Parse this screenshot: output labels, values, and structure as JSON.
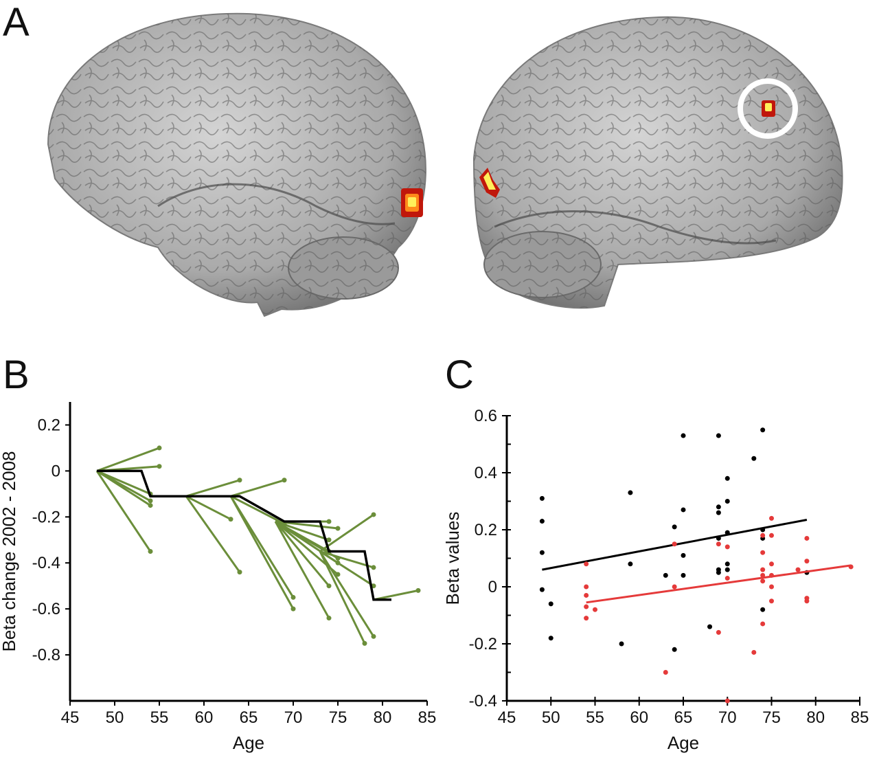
{
  "panels": {
    "a_label": "A",
    "b_label": "B",
    "c_label": "C"
  },
  "colors": {
    "brain": "#a9a9a9",
    "activation_outer": "#c0170b",
    "activation_inner": "#ffef5a",
    "green": "#6b8e3a",
    "black": "#000000",
    "red": "#e53a3a"
  },
  "chart_data": [
    {
      "type": "line",
      "xlabel": "Age",
      "ylabel": "Beta change 2002 - 2008",
      "xlim": [
        45,
        85
      ],
      "ylim": [
        -1.0,
        0.3
      ],
      "xticks": [
        "45",
        "50",
        "55",
        "60",
        "65",
        "70",
        "75",
        "80",
        "85"
      ],
      "yticks": [
        "0.2",
        "0",
        "-0.2",
        "-0.4",
        "-0.6",
        "-0.8"
      ],
      "ytick_values": [
        0.2,
        0,
        -0.2,
        -0.4,
        -0.6,
        -0.8
      ],
      "series": [
        {
          "style": "green segments (2002 age → 2008 age)",
          "segments": [
            [
              [
                48,
                0
              ],
              [
                55,
                0.1
              ]
            ],
            [
              [
                48,
                0
              ],
              [
                55,
                0.02
              ]
            ],
            [
              [
                48,
                0
              ],
              [
                54,
                -0.1
              ]
            ],
            [
              [
                48,
                0
              ],
              [
                54,
                -0.13
              ]
            ],
            [
              [
                48,
                0
              ],
              [
                54,
                -0.15
              ]
            ],
            [
              [
                48,
                0
              ],
              [
                54,
                -0.35
              ]
            ],
            [
              [
                58,
                -0.11
              ],
              [
                64,
                -0.04
              ]
            ],
            [
              [
                58,
                -0.11
              ],
              [
                63,
                -0.21
              ]
            ],
            [
              [
                58,
                -0.11
              ],
              [
                64,
                -0.44
              ]
            ],
            [
              [
                63,
                -0.11
              ],
              [
                69,
                -0.04
              ]
            ],
            [
              [
                63,
                -0.11
              ],
              [
                70,
                -0.55
              ]
            ],
            [
              [
                63,
                -0.11
              ],
              [
                70,
                -0.6
              ]
            ],
            [
              [
                63,
                -0.11
              ],
              [
                69,
                -0.23
              ]
            ],
            [
              [
                68,
                -0.22
              ],
              [
                74,
                -0.22
              ]
            ],
            [
              [
                68,
                -0.22
              ],
              [
                74,
                -0.3
              ]
            ],
            [
              [
                68,
                -0.22
              ],
              [
                74,
                -0.35
              ]
            ],
            [
              [
                68,
                -0.22
              ],
              [
                74,
                -0.64
              ]
            ],
            [
              [
                68,
                -0.22
              ],
              [
                75,
                -0.4
              ]
            ],
            [
              [
                68,
                -0.22
              ],
              [
                75,
                -0.45
              ]
            ],
            [
              [
                68,
                -0.22
              ],
              [
                75,
                -0.38
              ]
            ],
            [
              [
                68,
                -0.22
              ],
              [
                75,
                -0.25
              ]
            ],
            [
              [
                68,
                -0.22
              ],
              [
                74,
                -0.5
              ]
            ],
            [
              [
                73,
                -0.35
              ],
              [
                79,
                -0.19
              ]
            ],
            [
              [
                73,
                -0.35
              ],
              [
                79,
                -0.42
              ]
            ],
            [
              [
                73,
                -0.35
              ],
              [
                78,
                -0.75
              ]
            ],
            [
              [
                73,
                -0.35
              ],
              [
                79,
                -0.72
              ]
            ],
            [
              [
                73,
                -0.35
              ],
              [
                79,
                -0.5
              ]
            ],
            [
              [
                79,
                -0.56
              ],
              [
                84,
                -0.52
              ]
            ]
          ]
        },
        {
          "style": "black step line",
          "points": [
            [
              48,
              0
            ],
            [
              53,
              0
            ],
            [
              54,
              -0.11
            ],
            [
              64,
              -0.11
            ],
            [
              69,
              -0.22
            ],
            [
              73,
              -0.22
            ],
            [
              74,
              -0.35
            ],
            [
              78,
              -0.35
            ],
            [
              79,
              -0.56
            ],
            [
              81,
              -0.56
            ]
          ]
        }
      ]
    },
    {
      "type": "scatter",
      "xlabel": "Age",
      "ylabel": "Beta values",
      "xlim": [
        45,
        85
      ],
      "ylim": [
        -0.4,
        0.6
      ],
      "xticks": [
        "45",
        "50",
        "55",
        "60",
        "65",
        "70",
        "75",
        "80",
        "85"
      ],
      "yticks": [
        "0.6",
        "0.4",
        "0.2",
        "0",
        "-0.2",
        "-0.4"
      ],
      "ytick_values": [
        0.6,
        0.4,
        0.2,
        0,
        -0.2,
        -0.4
      ],
      "series": [
        {
          "color_key": "black",
          "points": [
            [
              49,
              0.31
            ],
            [
              49,
              0.23
            ],
            [
              49,
              0.12
            ],
            [
              49,
              -0.01
            ],
            [
              50,
              -0.06
            ],
            [
              50,
              -0.18
            ],
            [
              58,
              -0.2
            ],
            [
              59,
              0.33
            ],
            [
              59,
              0.08
            ],
            [
              63,
              0.04
            ],
            [
              64,
              -0.22
            ],
            [
              64,
              0.21
            ],
            [
              65,
              0.53
            ],
            [
              65,
              0.27
            ],
            [
              65,
              0.11
            ],
            [
              65,
              0.04
            ],
            [
              68,
              -0.14
            ],
            [
              69,
              0.53
            ],
            [
              69,
              0.28
            ],
            [
              69,
              0.26
            ],
            [
              69,
              0.17
            ],
            [
              69,
              0.06
            ],
            [
              69,
              0.05
            ],
            [
              70,
              0.38
            ],
            [
              70,
              0.3
            ],
            [
              70,
              0.19
            ],
            [
              70,
              0.08
            ],
            [
              70,
              0.06
            ],
            [
              73,
              0.45
            ],
            [
              74,
              0.55
            ],
            [
              74,
              0.2
            ],
            [
              74,
              0.17
            ],
            [
              74,
              -0.08
            ],
            [
              79,
              0.05
            ]
          ],
          "fit": [
            [
              49,
              0.06
            ],
            [
              79,
              0.235
            ]
          ]
        },
        {
          "color_key": "red",
          "points": [
            [
              54,
              0.08
            ],
            [
              54,
              0.0
            ],
            [
              54,
              -0.03
            ],
            [
              54,
              -0.07
            ],
            [
              54,
              -0.11
            ],
            [
              55,
              -0.08
            ],
            [
              63,
              -0.3
            ],
            [
              64,
              0.15
            ],
            [
              64,
              0.0
            ],
            [
              69,
              0.15
            ],
            [
              69,
              -0.16
            ],
            [
              70,
              0.03
            ],
            [
              70,
              -0.4
            ],
            [
              70,
              0.14
            ],
            [
              73,
              -0.23
            ],
            [
              74,
              0.18
            ],
            [
              74,
              0.06
            ],
            [
              74,
              0.04
            ],
            [
              74,
              0.02
            ],
            [
              74,
              -0.13
            ],
            [
              74,
              0.12
            ],
            [
              75,
              0.24
            ],
            [
              75,
              0.18
            ],
            [
              75,
              0.08
            ],
            [
              75,
              0.04
            ],
            [
              75,
              0.0
            ],
            [
              75,
              -0.05
            ],
            [
              78,
              0.06
            ],
            [
              79,
              0.17
            ],
            [
              79,
              0.09
            ],
            [
              79,
              -0.04
            ],
            [
              79,
              -0.05
            ],
            [
              84,
              0.07
            ]
          ],
          "fit": [
            [
              54,
              -0.055
            ],
            [
              84,
              0.075
            ]
          ]
        }
      ]
    }
  ]
}
